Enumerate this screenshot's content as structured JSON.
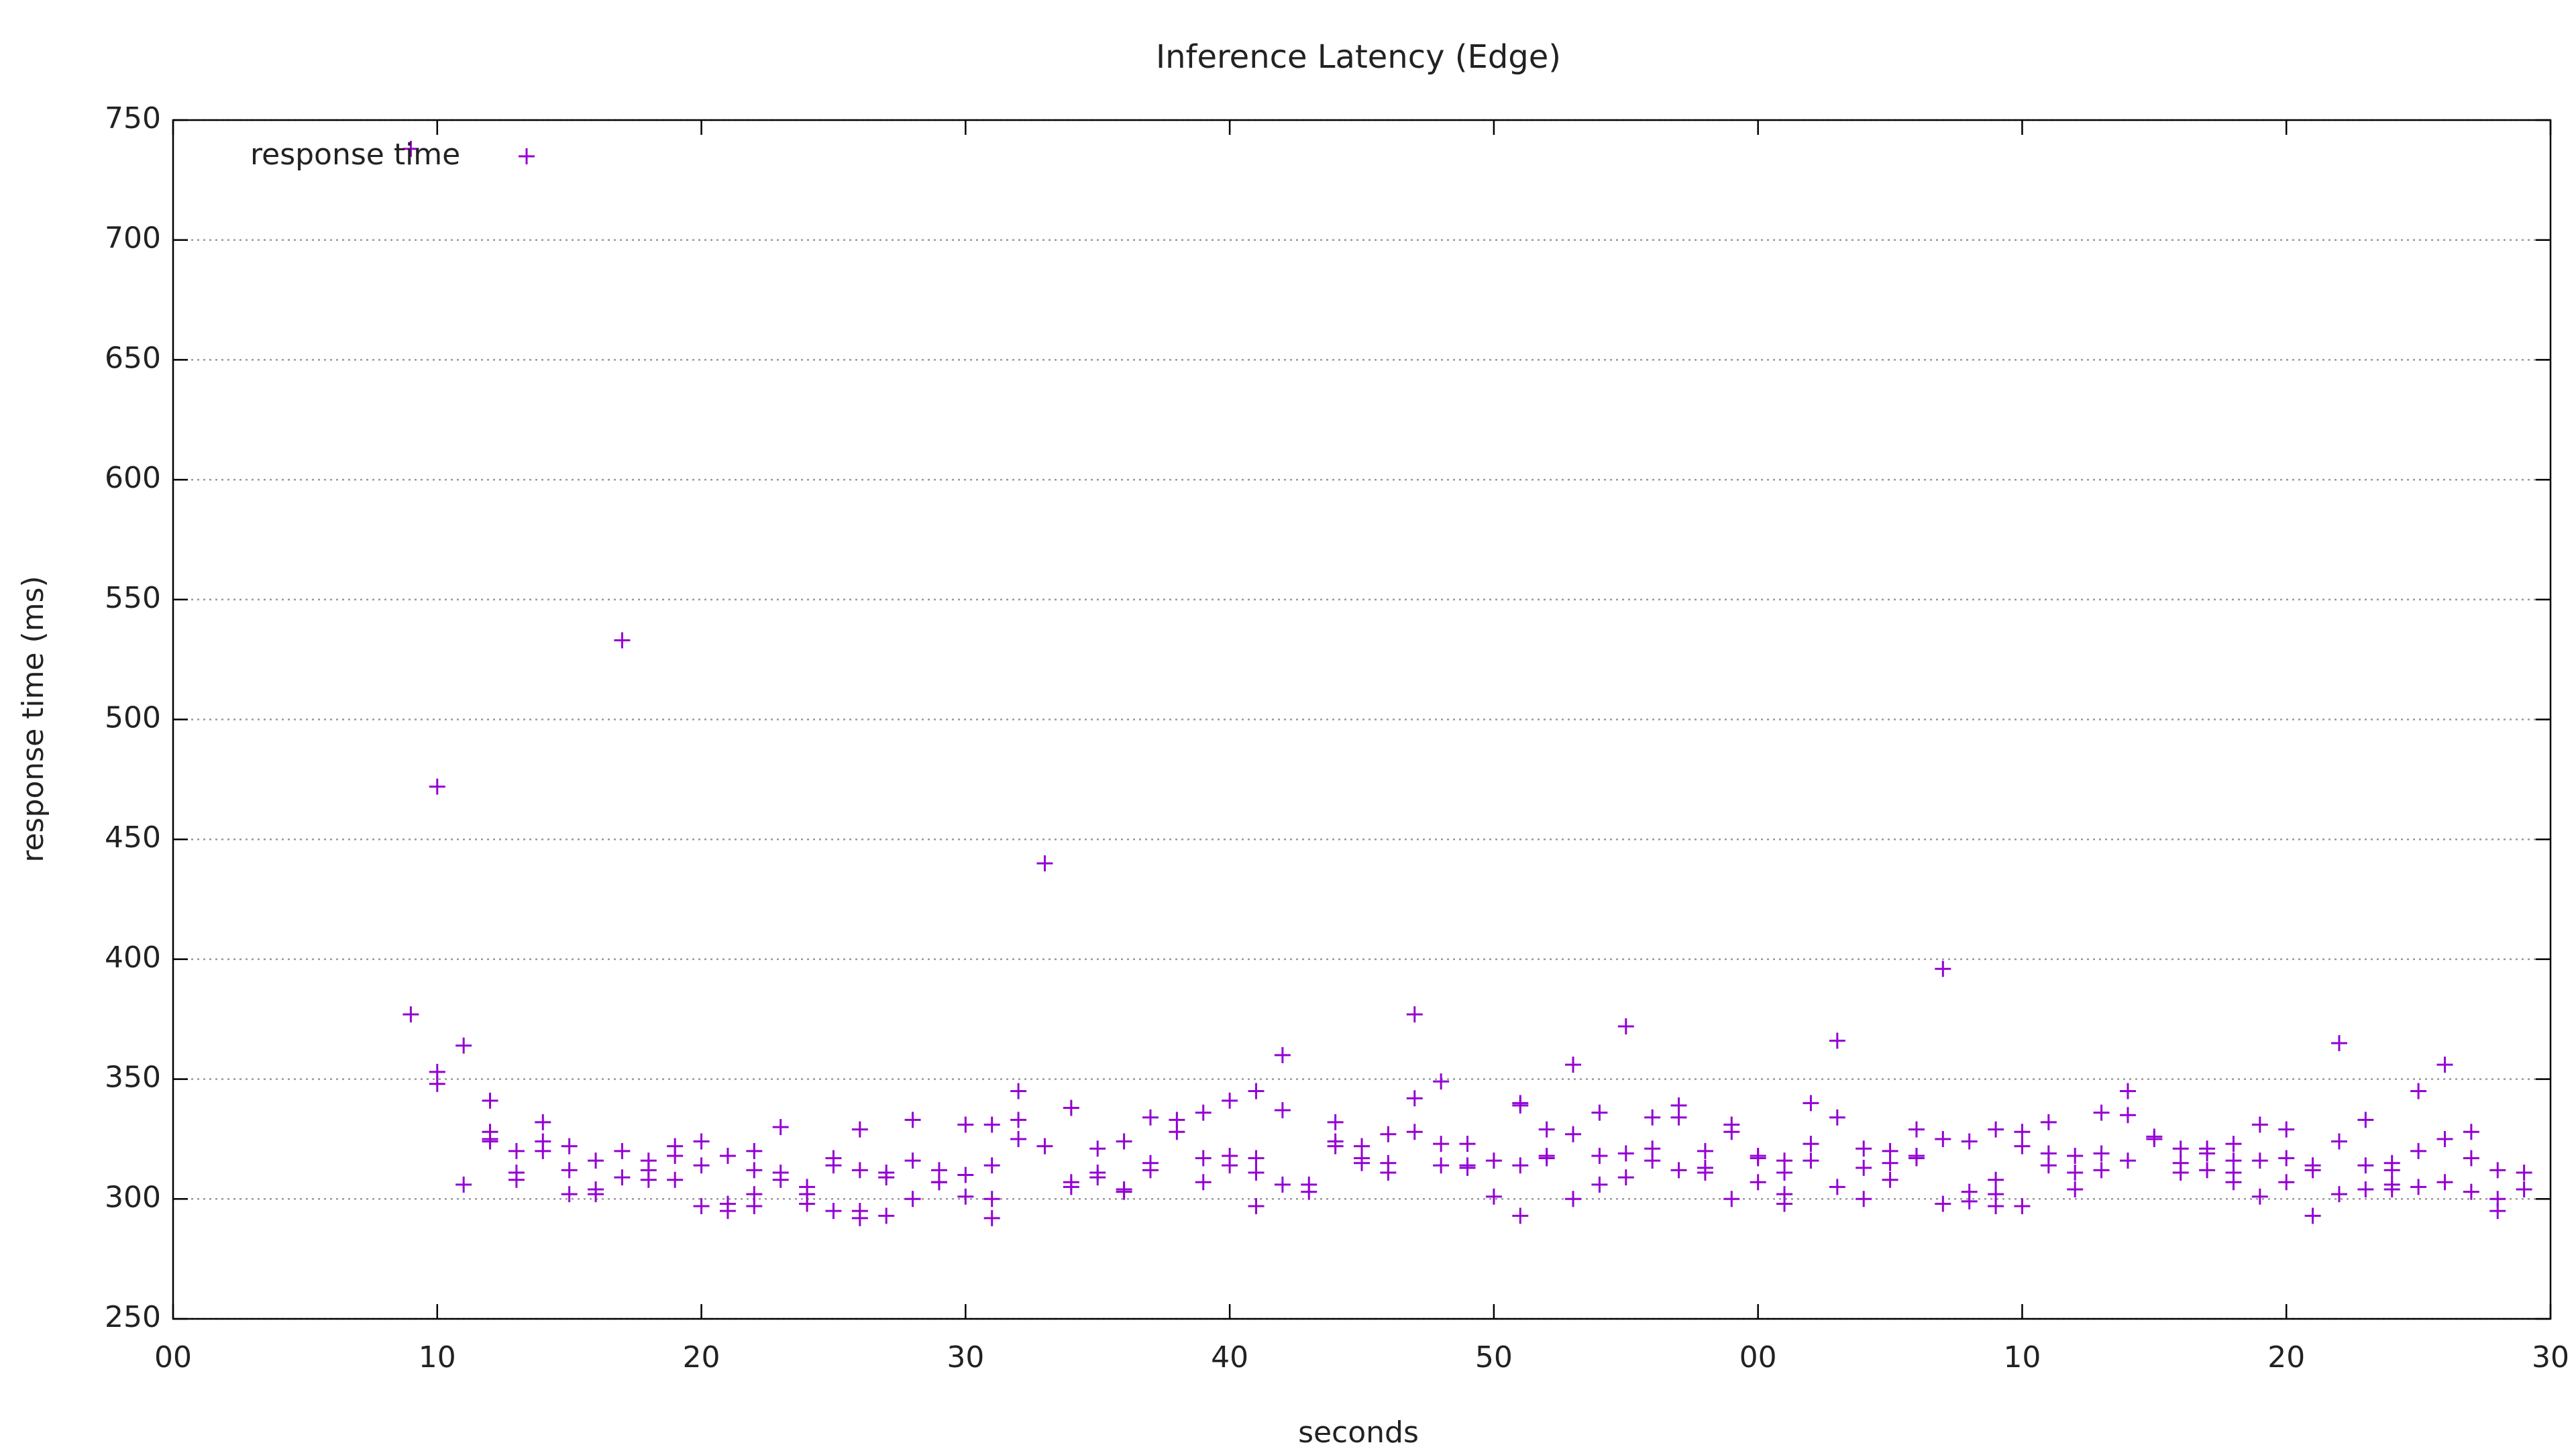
{
  "chart_data": {
    "type": "scatter",
    "title": "Inference Latency (Edge)",
    "x_label": "seconds",
    "y_label": "response time (ms)",
    "xlim": [
      0,
      90
    ],
    "ylim": [
      250,
      750
    ],
    "xticks": [
      {
        "value": 0,
        "label": "00"
      },
      10,
      20,
      30,
      40,
      50,
      {
        "value": 60,
        "label": "00"
      },
      {
        "value": 70,
        "label": "10"
      },
      {
        "value": 80,
        "label": "20"
      },
      {
        "value": 90,
        "label": "30"
      }
    ],
    "yticks": [
      250,
      300,
      350,
      400,
      450,
      500,
      550,
      600,
      650,
      700,
      750
    ],
    "grid": true,
    "legend": "top left",
    "x": [
      9,
      9,
      10,
      10,
      10,
      11,
      11,
      12,
      12,
      12,
      12,
      13,
      13,
      13,
      14,
      14,
      14,
      15,
      15,
      15,
      16,
      16,
      16,
      17,
      17,
      17,
      18,
      18,
      18,
      19,
      19,
      19,
      20,
      20,
      20,
      21,
      21,
      21,
      22,
      22,
      22,
      22,
      23,
      23,
      23,
      24,
      24,
      24,
      25,
      25,
      25,
      26,
      26,
      26,
      26,
      27,
      27,
      27,
      28,
      28,
      28,
      29,
      29,
      29,
      30,
      30,
      30,
      31,
      31,
      31,
      31,
      32,
      32,
      32,
      33,
      33,
      34,
      34,
      34,
      35,
      35,
      35,
      36,
      36,
      36,
      37,
      37,
      37,
      38,
      38,
      39,
      39,
      39,
      40,
      40,
      40,
      41,
      41,
      41,
      41,
      42,
      42,
      42,
      43,
      43,
      44,
      44,
      44,
      45,
      45,
      45,
      46,
      46,
      46,
      47,
      47,
      47,
      48,
      48,
      48,
      49,
      49,
      49,
      50,
      50,
      51,
      51,
      51,
      51,
      52,
      52,
      52,
      53,
      53,
      53,
      54,
      54,
      54,
      55,
      55,
      55,
      56,
      56,
      56,
      57,
      57,
      57,
      58,
      58,
      58,
      59,
      59,
      59,
      60,
      60,
      60,
      61,
      61,
      61,
      61,
      62,
      62,
      62,
      63,
      63,
      63,
      64,
      64,
      64,
      65,
      65,
      65,
      66,
      66,
      66,
      67,
      67,
      67,
      68,
      68,
      68,
      69,
      69,
      69,
      69,
      70,
      70,
      70,
      71,
      71,
      71,
      72,
      72,
      72,
      73,
      73,
      73,
      74,
      74,
      74,
      75,
      75,
      76,
      76,
      76,
      77,
      77,
      77,
      78,
      78,
      78,
      78,
      79,
      79,
      79,
      80,
      80,
      80,
      81,
      81,
      81,
      82,
      82,
      82,
      83,
      83,
      83,
      84,
      84,
      84,
      84,
      85,
      85,
      85,
      86,
      86,
      86,
      87,
      87,
      87,
      88,
      88,
      88,
      89,
      89
    ],
    "series": [
      {
        "name": "response time",
        "color": "#9400d3",
        "values": [
          738,
          377,
          472,
          353,
          348,
          364,
          306,
          341,
          328,
          324,
          325,
          320,
          311,
          308,
          332,
          324,
          320,
          322,
          312,
          302,
          316,
          304,
          302,
          533,
          320,
          309,
          316,
          312,
          308,
          322,
          318,
          308,
          324,
          314,
          297,
          318,
          298,
          295,
          320,
          312,
          302,
          297,
          330,
          311,
          308,
          305,
          302,
          298,
          317,
          314,
          295,
          329,
          312,
          295,
          292,
          311,
          309,
          293,
          333,
          316,
          300,
          312,
          307,
          307,
          331,
          310,
          301,
          331,
          314,
          300,
          292,
          345,
          333,
          325,
          440,
          322,
          338,
          307,
          305,
          321,
          311,
          309,
          324,
          304,
          303,
          334,
          315,
          312,
          333,
          328,
          336,
          317,
          307,
          341,
          318,
          314,
          345,
          317,
          311,
          297,
          360,
          337,
          306,
          306,
          303,
          332,
          324,
          322,
          322,
          317,
          315,
          327,
          315,
          311,
          377,
          342,
          328,
          349,
          323,
          314,
          323,
          314,
          313,
          316,
          301,
          340,
          339,
          314,
          293,
          329,
          318,
          317,
          356,
          327,
          300,
          336,
          318,
          306,
          372,
          319,
          309,
          334,
          321,
          316,
          339,
          334,
          312,
          320,
          313,
          311,
          331,
          328,
          300,
          318,
          317,
          307,
          316,
          311,
          302,
          298,
          340,
          323,
          316,
          366,
          334,
          305,
          321,
          313,
          300,
          320,
          315,
          308,
          329,
          318,
          317,
          396,
          325,
          298,
          324,
          303,
          299,
          329,
          308,
          302,
          297,
          328,
          322,
          297,
          332,
          319,
          314,
          318,
          311,
          304,
          336,
          319,
          312,
          345,
          335,
          316,
          326,
          325,
          321,
          315,
          311,
          321,
          319,
          312,
          323,
          316,
          311,
          307,
          331,
          316,
          301,
          329,
          317,
          307,
          314,
          312,
          293,
          365,
          324,
          302,
          333,
          314,
          304,
          315,
          312,
          306,
          304,
          345,
          320,
          305,
          356,
          325,
          307,
          328,
          317,
          303,
          312,
          300,
          295,
          311,
          304
        ]
      }
    ]
  }
}
